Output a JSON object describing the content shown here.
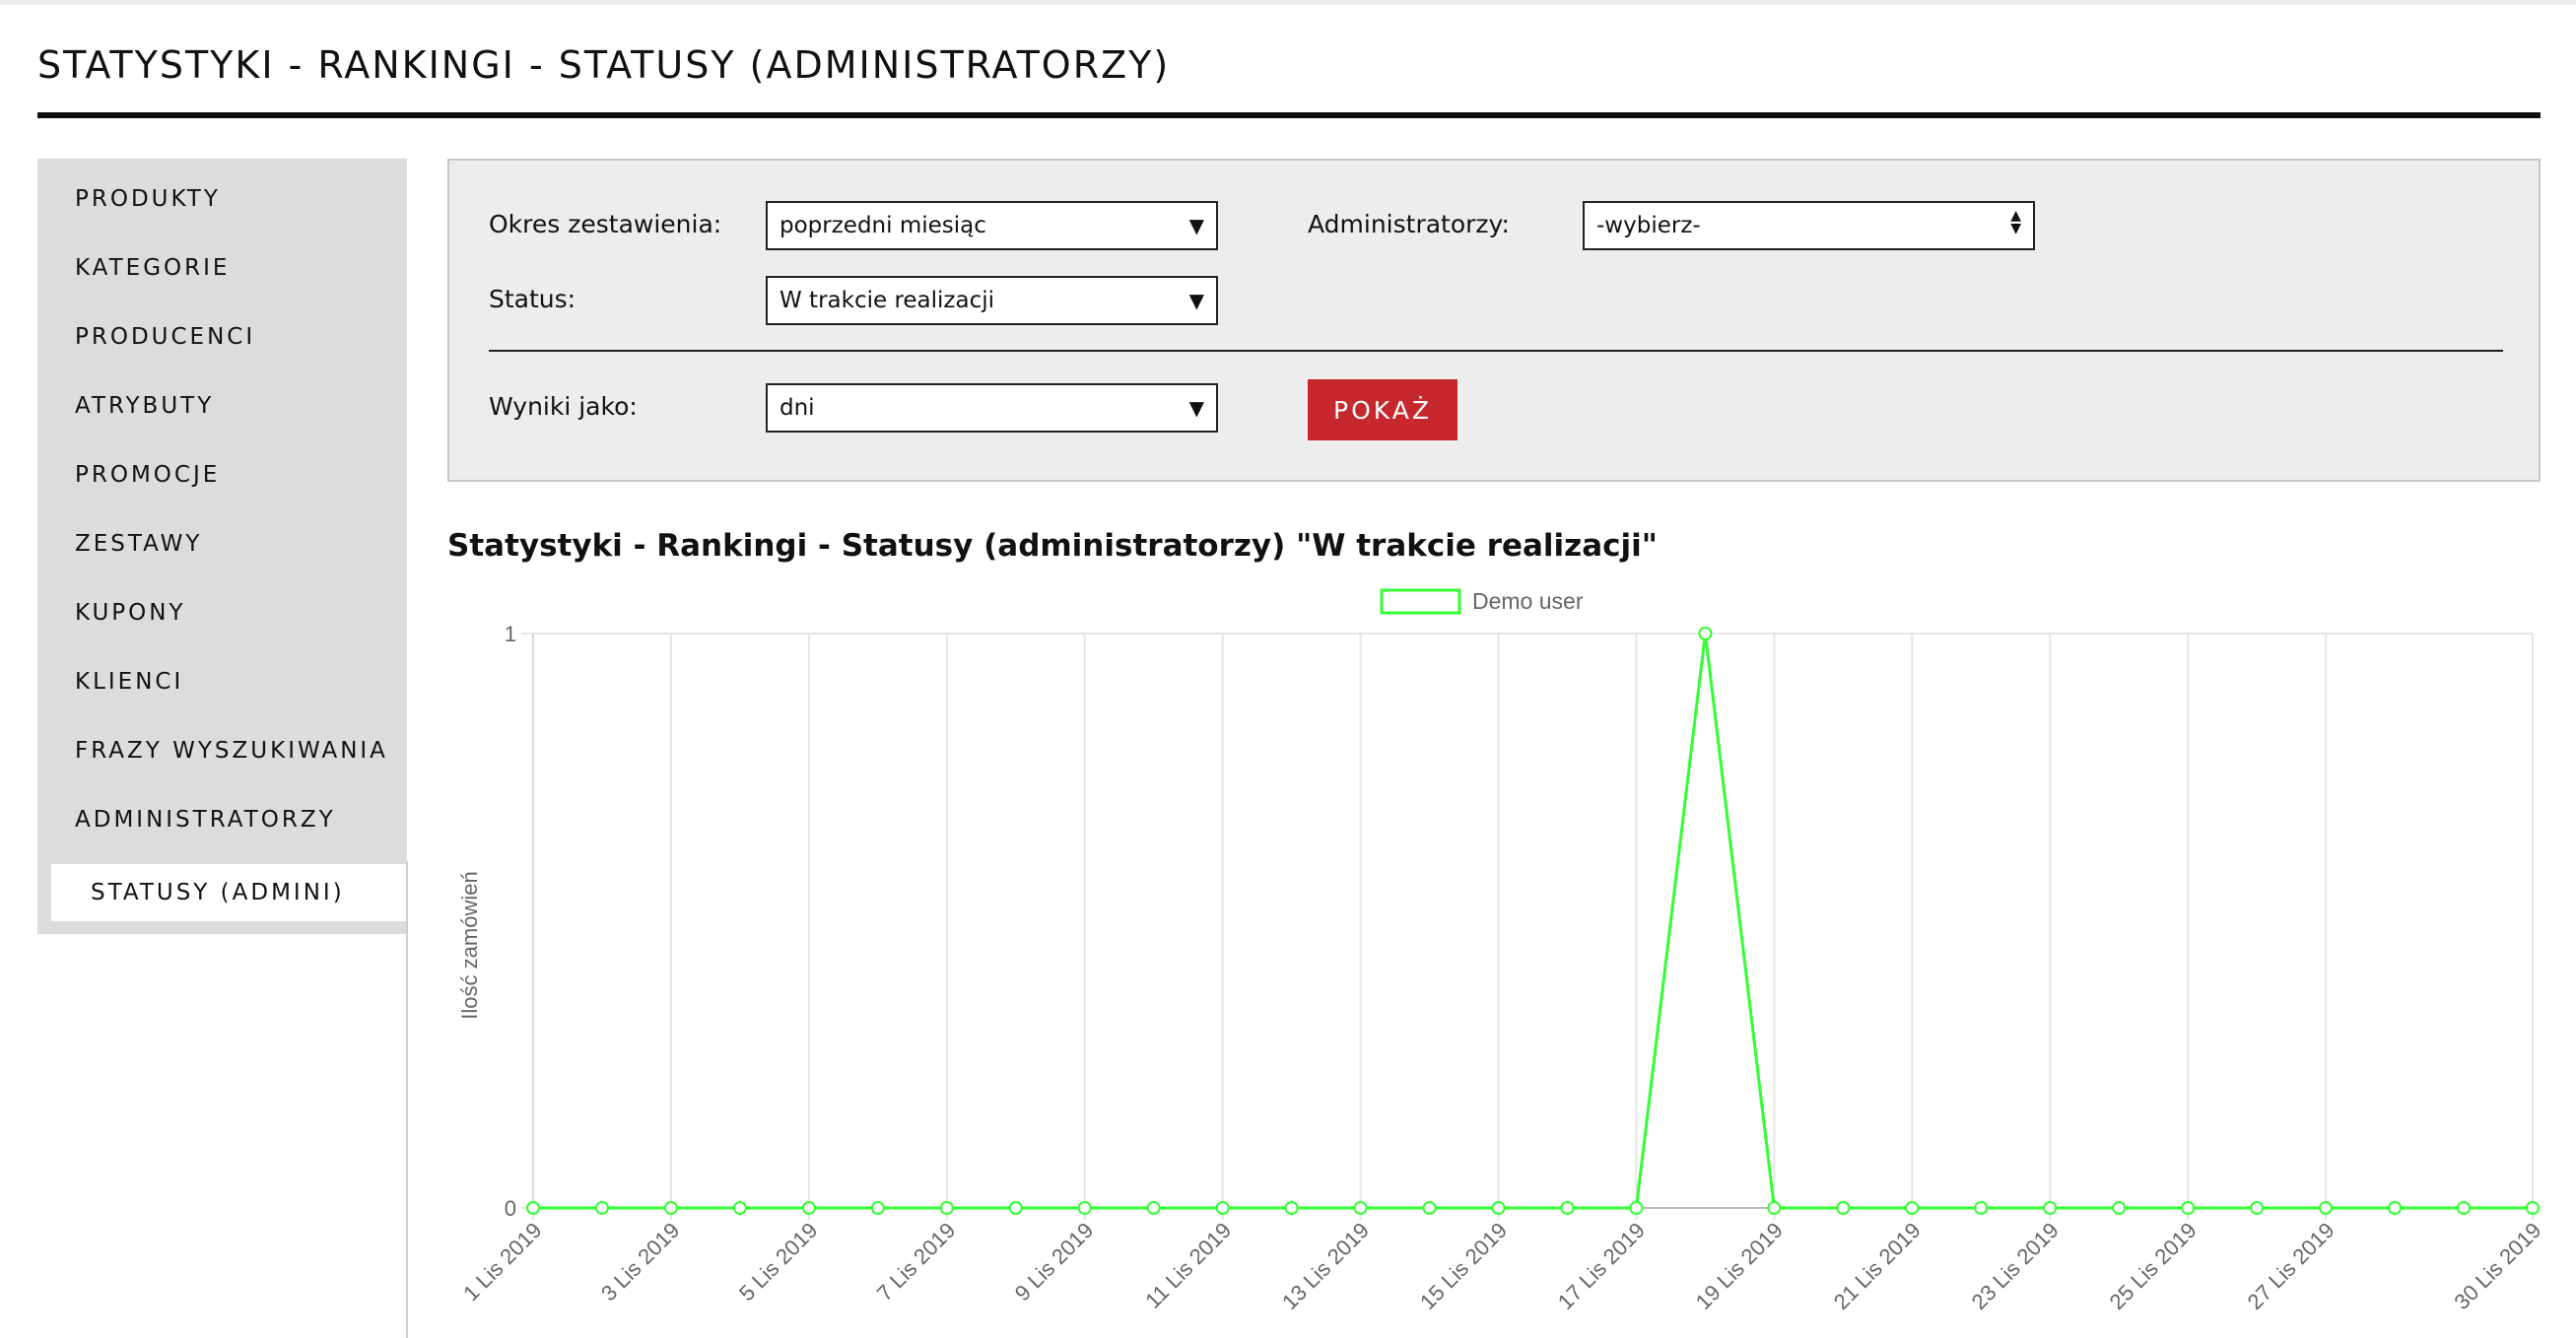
{
  "page": {
    "title": "STATYSTYKI - RANKINGI - STATUSY (ADMINISTRATORZY)"
  },
  "sidebar": {
    "items": [
      {
        "label": "PRODUKTY"
      },
      {
        "label": "KATEGORIE"
      },
      {
        "label": "PRODUCENCI"
      },
      {
        "label": "ATRYBUTY"
      },
      {
        "label": "PROMOCJE"
      },
      {
        "label": "ZESTAWY"
      },
      {
        "label": "KUPONY"
      },
      {
        "label": "KLIENCI"
      },
      {
        "label": "FRAZY WYSZUKIWANIA"
      },
      {
        "label": "ADMINISTRATORZY"
      },
      {
        "label": "STATUSY (ADMINI)",
        "active": true
      }
    ]
  },
  "filters": {
    "period_label": "Okres zestawienia:",
    "period_value": "poprzedni miesiąc",
    "admins_label": "Administratorzy:",
    "admins_value": "-wybierz-",
    "status_label": "Status:",
    "status_value": "W trakcie realizacji",
    "results_label": "Wyniki jako:",
    "results_value": "dni",
    "show_button": "POKAŻ"
  },
  "chart_heading": "Statystyki - Rankingi - Statusy (administratorzy) \"W trakcie realizacji\"",
  "chart_data": {
    "type": "line",
    "x": [
      "1 Lis 2019",
      "2 Lis 2019",
      "3 Lis 2019",
      "4 Lis 2019",
      "5 Lis 2019",
      "6 Lis 2019",
      "7 Lis 2019",
      "8 Lis 2019",
      "9 Lis 2019",
      "10 Lis 2019",
      "11 Lis 2019",
      "12 Lis 2019",
      "13 Lis 2019",
      "14 Lis 2019",
      "15 Lis 2019",
      "16 Lis 2019",
      "17 Lis 2019",
      "18 Lis 2019",
      "19 Lis 2019",
      "20 Lis 2019",
      "21 Lis 2019",
      "22 Lis 2019",
      "23 Lis 2019",
      "24 Lis 2019",
      "25 Lis 2019",
      "26 Lis 2019",
      "27 Lis 2019",
      "28 Lis 2019",
      "29 Lis 2019",
      "30 Lis 2019"
    ],
    "x_tick_labels": [
      "1 Lis 2019",
      "3 Lis 2019",
      "5 Lis 2019",
      "7 Lis 2019",
      "9 Lis 2019",
      "11 Lis 2019",
      "13 Lis 2019",
      "15 Lis 2019",
      "17 Lis 2019",
      "19 Lis 2019",
      "21 Lis 2019",
      "23 Lis 2019",
      "25 Lis 2019",
      "27 Lis 2019",
      "30 Lis 2019"
    ],
    "series": [
      {
        "name": "Demo user",
        "color": "#33ff33",
        "values": [
          0,
          0,
          0,
          0,
          0,
          0,
          0,
          0,
          0,
          0,
          0,
          0,
          0,
          0,
          0,
          0,
          0,
          1,
          0,
          0,
          0,
          0,
          0,
          0,
          0,
          0,
          0,
          0,
          0,
          0
        ]
      }
    ],
    "ylabel": "Ilość zamówień",
    "ylim": [
      0,
      1
    ],
    "y_ticks": [
      0,
      1
    ],
    "grid": true,
    "legend": "top-center"
  }
}
